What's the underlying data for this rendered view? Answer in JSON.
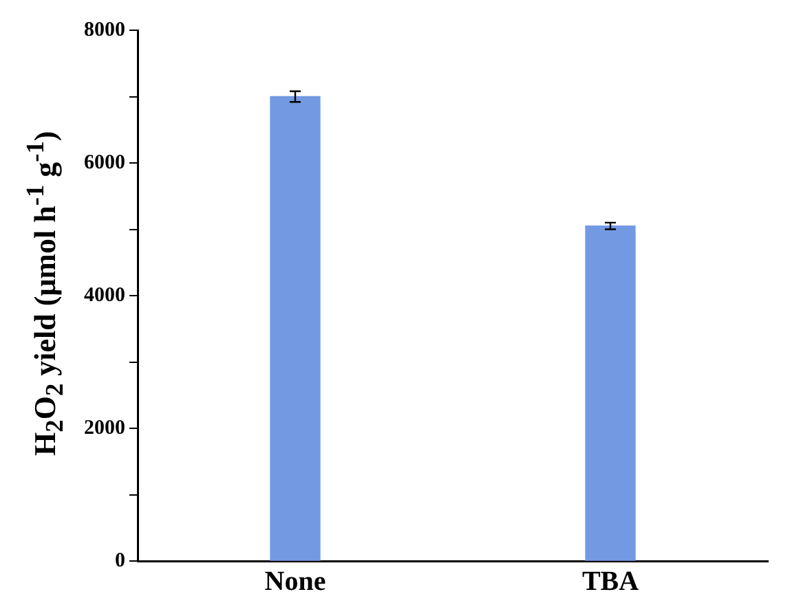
{
  "chart_data": {
    "type": "bar",
    "ylabel": "H$_{2}$O$_{2}$ yield (μmol h$^{-1}$ g$^{-1}$)",
    "categories": [
      "None",
      "TBA"
    ],
    "values": [
      7000,
      5050
    ],
    "errors": [
      80,
      50
    ],
    "color": "#7399e3",
    "ylim": [
      0,
      8000
    ],
    "yticks": [
      0,
      {
        "value": 1000,
        "label": null
      },
      2000,
      {
        "value": 3000,
        "label": null
      },
      4000,
      {
        "value": 5000,
        "label": null
      },
      6000,
      {
        "value": 7000,
        "label": null
      },
      8000
    ],
    "grid": false,
    "legend": false
  }
}
